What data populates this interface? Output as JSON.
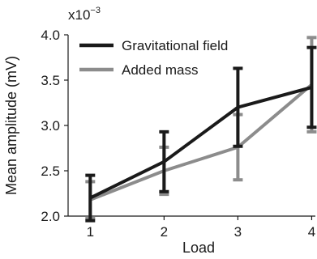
{
  "chart_data": {
    "type": "line",
    "xlabel": "Load",
    "ylabel": "Mean amplitude (mV)",
    "y_multiplier": {
      "base": "x10",
      "exponent": "−3"
    },
    "x": [
      1,
      2,
      3,
      4
    ],
    "xlim": [
      0.7,
      4.05
    ],
    "ylim": [
      2.0,
      4.0
    ],
    "x_ticks": [
      "1",
      "2",
      "3",
      "4"
    ],
    "y_ticks": [
      "2.0",
      "2.5",
      "3.0",
      "3.5",
      "4.0"
    ],
    "grid": false,
    "legend_position": "top-left",
    "series": [
      {
        "name": "Gravitational field",
        "color": "#1a1a1a",
        "values": [
          2.2,
          2.6,
          3.2,
          3.42
        ],
        "error": [
          0.25,
          0.33,
          0.43,
          0.44
        ]
      },
      {
        "name": "Added mass",
        "color": "#8c8c8c",
        "values": [
          2.18,
          2.5,
          2.76,
          3.45
        ],
        "error": [
          0.2,
          0.26,
          0.36,
          0.52
        ]
      }
    ]
  }
}
